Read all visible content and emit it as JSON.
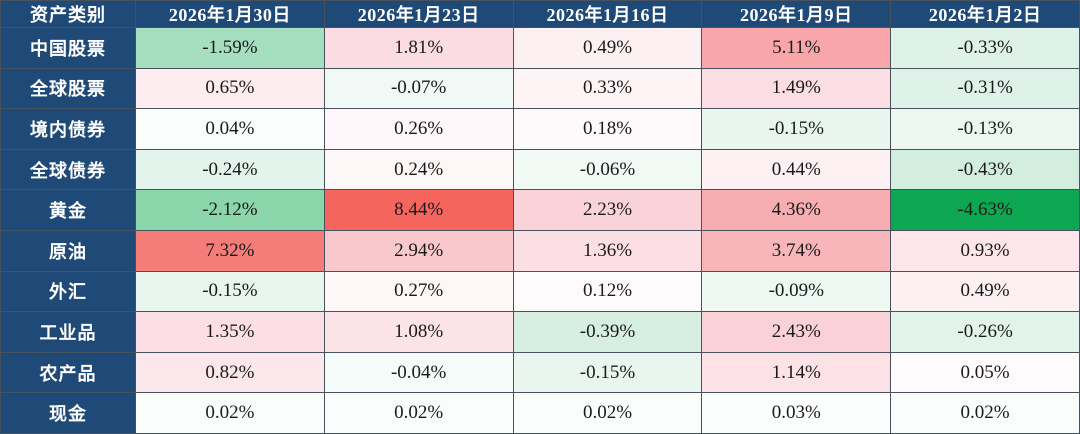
{
  "table": {
    "header": {
      "asset_label": "资产类别",
      "dates": [
        "2026年1月30日",
        "2026年1月23日",
        "2026年1月16日",
        "2026年1月9日",
        "2026年1月2日"
      ]
    },
    "rows": [
      {
        "label": "中国股票",
        "cells": [
          {
            "value": "-1.59%",
            "bg": "#a6dfc0"
          },
          {
            "value": "1.81%",
            "bg": "#fbdce2"
          },
          {
            "value": "0.49%",
            "bg": "#fdf0f3"
          },
          {
            "value": "5.11%",
            "bg": "#f9a6aa"
          },
          {
            "value": "-0.33%",
            "bg": "#def2e8"
          }
        ]
      },
      {
        "label": "全球股票",
        "cells": [
          {
            "value": "0.65%",
            "bg": "#fdedf0"
          },
          {
            "value": "-0.07%",
            "bg": "#f0f9f5"
          },
          {
            "value": "0.33%",
            "bg": "#fef4f6"
          },
          {
            "value": "1.49%",
            "bg": "#fbdee4"
          },
          {
            "value": "-0.31%",
            "bg": "#dff2e9"
          }
        ]
      },
      {
        "label": "境内债券",
        "cells": [
          {
            "value": "0.04%",
            "bg": "#f9fdfb"
          },
          {
            "value": "0.26%",
            "bg": "#fef6f8"
          },
          {
            "value": "0.18%",
            "bg": "#fef9fa"
          },
          {
            "value": "-0.15%",
            "bg": "#e9f6ef"
          },
          {
            "value": "-0.13%",
            "bg": "#ebf7f0"
          }
        ]
      },
      {
        "label": "全球债券",
        "cells": [
          {
            "value": "-0.24%",
            "bg": "#e3f4ec"
          },
          {
            "value": "0.24%",
            "bg": "#fef7f8"
          },
          {
            "value": "-0.06%",
            "bg": "#f1faf5"
          },
          {
            "value": "0.44%",
            "bg": "#fdf1f4"
          },
          {
            "value": "-0.43%",
            "bg": "#d3eddf"
          }
        ]
      },
      {
        "label": "黄金",
        "cells": [
          {
            "value": "-2.12%",
            "bg": "#8bd5ab"
          },
          {
            "value": "8.44%",
            "bg": "#f4655e"
          },
          {
            "value": "2.23%",
            "bg": "#f9d3d8"
          },
          {
            "value": "4.36%",
            "bg": "#f7aeb2"
          },
          {
            "value": "-4.63%",
            "bg": "#0ca750"
          }
        ]
      },
      {
        "label": "原油",
        "cells": [
          {
            "value": "7.32%",
            "bg": "#f57d79"
          },
          {
            "value": "2.94%",
            "bg": "#f9c8cd"
          },
          {
            "value": "1.36%",
            "bg": "#fbdfe5"
          },
          {
            "value": "3.74%",
            "bg": "#f8b6bb"
          },
          {
            "value": "0.93%",
            "bg": "#fce6ea"
          }
        ]
      },
      {
        "label": "外汇",
        "cells": [
          {
            "value": "-0.15%",
            "bg": "#e9f6ef"
          },
          {
            "value": "0.27%",
            "bg": "#fef6f7"
          },
          {
            "value": "0.12%",
            "bg": "#fefbfc"
          },
          {
            "value": "-0.09%",
            "bg": "#eff9f4"
          },
          {
            "value": "0.49%",
            "bg": "#fdf0f3"
          }
        ]
      },
      {
        "label": "工业品",
        "cells": [
          {
            "value": "1.35%",
            "bg": "#fbdfe5"
          },
          {
            "value": "1.08%",
            "bg": "#fce3e8"
          },
          {
            "value": "-0.39%",
            "bg": "#d7efe2"
          },
          {
            "value": "2.43%",
            "bg": "#f9d1d7"
          },
          {
            "value": "-0.26%",
            "bg": "#e1f3ea"
          }
        ]
      },
      {
        "label": "农产品",
        "cells": [
          {
            "value": "0.82%",
            "bg": "#fce8ec"
          },
          {
            "value": "-0.04%",
            "bg": "#f4fbf8"
          },
          {
            "value": "-0.15%",
            "bg": "#e9f6ef"
          },
          {
            "value": "1.14%",
            "bg": "#fce2e7"
          },
          {
            "value": "0.05%",
            "bg": "#fefbfc"
          }
        ]
      },
      {
        "label": "现金",
        "cells": [
          {
            "value": "0.02%",
            "bg": "#fbfdfd"
          },
          {
            "value": "0.02%",
            "bg": "#fbfdfd"
          },
          {
            "value": "0.02%",
            "bg": "#fbfdfd"
          },
          {
            "value": "0.03%",
            "bg": "#fcfdfd"
          },
          {
            "value": "0.02%",
            "bg": "#fbfdfd"
          }
        ]
      }
    ]
  },
  "colors": {
    "header_bg": "#1f4a78",
    "header_text": "#ffffff",
    "value_text": "#1a1a1a",
    "border": "#47525c",
    "strong_positive": "#f4655e",
    "strong_negative": "#0ca750",
    "mild_positive": "#fbdce2",
    "mild_negative": "#def2e8"
  },
  "chart_data": {
    "type": "heatmap",
    "title": "",
    "corner_label": "资产类别",
    "columns": [
      "2026年1月30日",
      "2026年1月23日",
      "2026年1月16日",
      "2026年1月9日",
      "2026年1月2日"
    ],
    "rows": [
      "中国股票",
      "全球股票",
      "境内债券",
      "全球债券",
      "黄金",
      "原油",
      "外汇",
      "工业品",
      "农产品",
      "现金"
    ],
    "values_pct": [
      [
        -1.59,
        1.81,
        0.49,
        5.11,
        -0.33
      ],
      [
        0.65,
        -0.07,
        0.33,
        1.49,
        -0.31
      ],
      [
        0.04,
        0.26,
        0.18,
        -0.15,
        -0.13
      ],
      [
        -0.24,
        0.24,
        -0.06,
        0.44,
        -0.43
      ],
      [
        -2.12,
        8.44,
        2.23,
        4.36,
        -4.63
      ],
      [
        7.32,
        2.94,
        1.36,
        3.74,
        0.93
      ],
      [
        -0.15,
        0.27,
        0.12,
        -0.09,
        0.49
      ],
      [
        1.35,
        1.08,
        -0.39,
        2.43,
        -0.26
      ],
      [
        0.82,
        -0.04,
        -0.15,
        1.14,
        0.05
      ],
      [
        0.02,
        0.02,
        0.02,
        0.03,
        0.02
      ]
    ],
    "color_scale": {
      "positive_max": "#f4655e",
      "negative_max": "#0ca750",
      "neutral": "#ffffff"
    },
    "legend_position": "none",
    "grid": true
  }
}
